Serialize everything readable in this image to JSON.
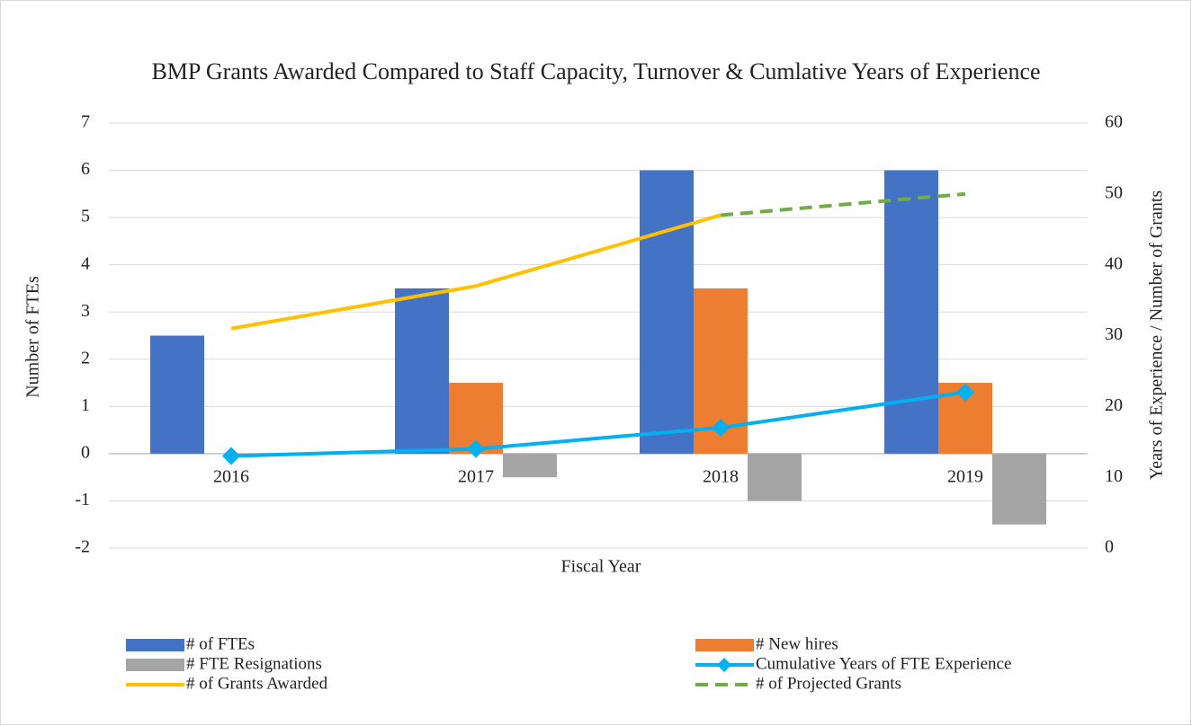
{
  "chart_data": {
    "type": "bar",
    "title": "BMP Grants Awarded Compared to Staff Capacity, Turnover & Cumlative Years of Experience",
    "xlabel": "Fiscal Year",
    "ylabel": "Number of FTEs",
    "y2label": "Years of Experience / Number of Grants",
    "categories": [
      "2016",
      "2017",
      "2018",
      "2019"
    ],
    "ylim": [
      -2,
      7
    ],
    "yticks": [
      -2,
      -1,
      0,
      1,
      2,
      3,
      4,
      5,
      6,
      7
    ],
    "y2lim": [
      0,
      60
    ],
    "y2ticks": [
      0,
      10,
      20,
      30,
      40,
      50,
      60
    ],
    "grid": true,
    "legend": "bottom",
    "series": [
      {
        "name": "# of  FTEs",
        "kind": "bar",
        "color": "#4472c4",
        "values": [
          2.5,
          3.5,
          6,
          6
        ]
      },
      {
        "name": "# New hires",
        "kind": "bar",
        "color": "#ed7d31",
        "values": [
          0,
          1.5,
          3.5,
          1.5
        ]
      },
      {
        "name": "#  FTE Resignations",
        "kind": "bar",
        "color": "#a5a5a5",
        "values": [
          0,
          -0.5,
          -1,
          -1.5
        ]
      },
      {
        "name": "Cumulative Years of FTE Experience",
        "kind": "line",
        "axis": "y2",
        "marker": "diamond",
        "color": "#00b0f0",
        "values": [
          13,
          14,
          17,
          22
        ]
      },
      {
        "name": "# of Grants Awarded",
        "kind": "line",
        "axis": "y2",
        "color": "#ffc000",
        "values": [
          31,
          37,
          47,
          null
        ]
      },
      {
        "name": "# of Projected Grants",
        "kind": "line",
        "axis": "y2",
        "dash": true,
        "color": "#70ad47",
        "values": [
          null,
          null,
          47,
          50
        ]
      }
    ]
  }
}
